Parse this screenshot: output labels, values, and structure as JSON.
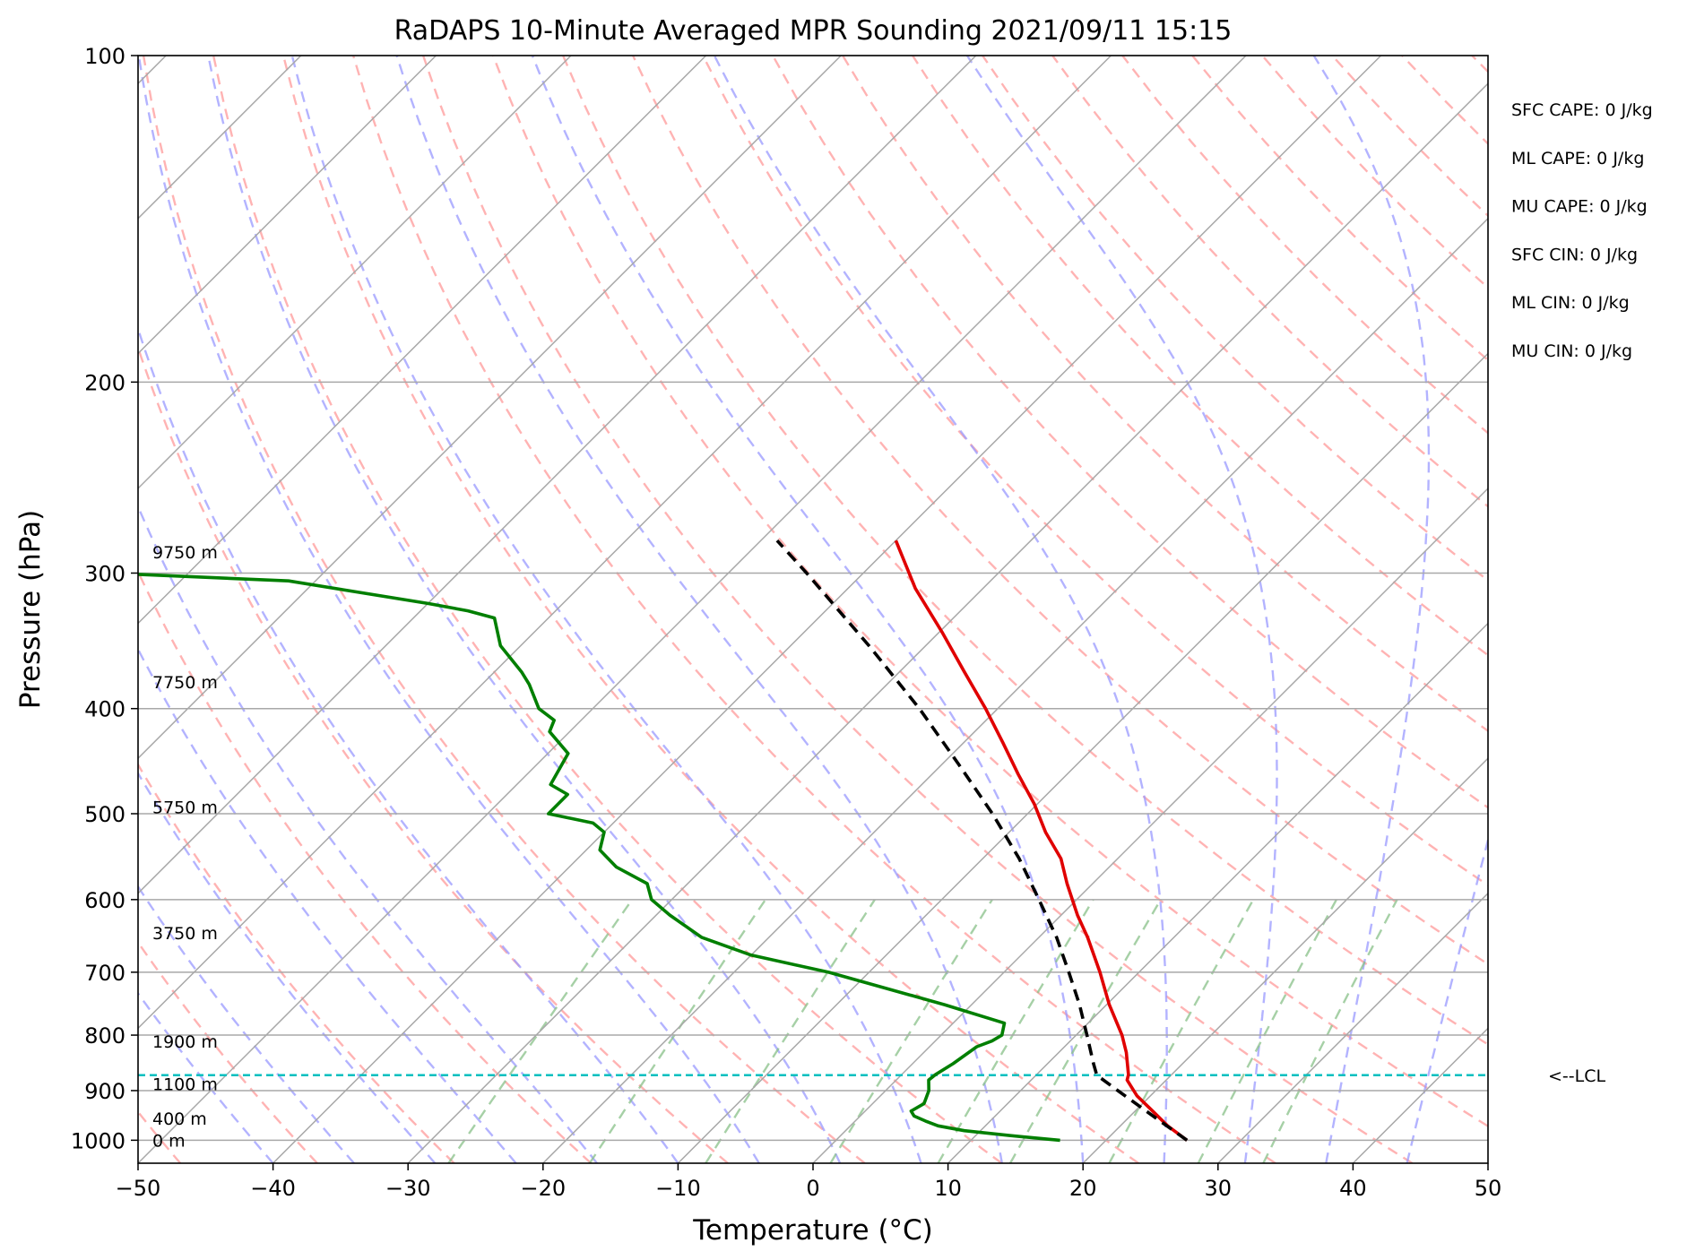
{
  "chart_data": {
    "type": "line",
    "title": "RaDAPS 10-Minute Averaged MPR Sounding 2021/09/11 15:15",
    "xlabel": "Temperature (°C)",
    "ylabel": "Pressure (hPa)",
    "xlim": [
      -50,
      50
    ],
    "ylim": [
      1050,
      100
    ],
    "yscale": "log",
    "skew_t": true,
    "grid": true,
    "x_ticks": [
      -50,
      -40,
      -30,
      -20,
      -10,
      0,
      10,
      20,
      30,
      40,
      50
    ],
    "x_tick_labels": [
      "−50",
      "−40",
      "−30",
      "−20",
      "−10",
      "0",
      "10",
      "20",
      "30",
      "40",
      "50"
    ],
    "y_ticks": [
      1000,
      900,
      800,
      700,
      600,
      500,
      400,
      300,
      200,
      100
    ],
    "y_tick_labels": [
      "1000",
      "900",
      "800",
      "700",
      "600",
      "500",
      "400",
      "300",
      "200",
      "100"
    ],
    "series": [
      {
        "role": "temperature",
        "color": "#e00000",
        "pressure": [
          1000,
          970,
          940,
          910,
          880,
          870,
          830,
          800,
          750,
          700,
          650,
          620,
          580,
          550,
          520,
          490,
          460,
          430,
          400,
          370,
          340,
          310,
          280
        ],
        "temperature": [
          26.0,
          23.5,
          21.3,
          19.0,
          17.1,
          16.8,
          15.0,
          13.4,
          10.2,
          7.1,
          3.6,
          1.2,
          -1.9,
          -4.2,
          -7.3,
          -10.2,
          -13.6,
          -17.1,
          -20.9,
          -25.2,
          -29.8,
          -35.0,
          -40.0
        ]
      },
      {
        "role": "dewpoint",
        "color": "#007f00",
        "pressure": [
          1000,
          990,
          980,
          970,
          960,
          950,
          940,
          925,
          900,
          880,
          870,
          850,
          820,
          810,
          800,
          780,
          750,
          700,
          675,
          650,
          620,
          600,
          580,
          560,
          540,
          520,
          510,
          500,
          480,
          470,
          440,
          420,
          410,
          400,
          380,
          370,
          350,
          330,
          325,
          320,
          305,
          300
        ],
        "dewpoint": [
          16.6,
          12.5,
          8.8,
          6.5,
          5.2,
          4.0,
          3.4,
          3.8,
          3.2,
          2.4,
          2.5,
          3.0,
          3.5,
          4.2,
          4.5,
          3.8,
          -2.0,
          -13.0,
          -20.0,
          -25.0,
          -29.0,
          -31.5,
          -33.0,
          -36.5,
          -39.0,
          -40.0,
          -41.5,
          -45.5,
          -45.5,
          -47.5,
          -48.5,
          -51.5,
          -52.0,
          -54.0,
          -56.5,
          -58.0,
          -61.5,
          -64.0,
          -66.5,
          -70.0,
          -82.0,
          -96.0
        ]
      },
      {
        "role": "parcel",
        "color": "#000000",
        "style": "dashed",
        "pressure": [
          1000,
          950,
          900,
          871,
          850,
          800,
          750,
          700,
          650,
          600,
          550,
          500,
          450,
          400,
          350,
          300,
          280
        ],
        "temperature": [
          26.0,
          21.7,
          17.2,
          14.5,
          13.4,
          10.8,
          8.0,
          4.8,
          1.3,
          -2.8,
          -7.3,
          -12.6,
          -18.8,
          -25.8,
          -34.2,
          -44.2,
          -48.8
        ]
      }
    ],
    "lcl": {
      "pressure": 871,
      "label": "<--LCL",
      "color": "#00bfbf"
    },
    "height_labels": [
      {
        "text": "0 m",
        "pressure": 1000
      },
      {
        "text": "400 m",
        "pressure": 955
      },
      {
        "text": "1100 m",
        "pressure": 887
      },
      {
        "text": "1900 m",
        "pressure": 811
      },
      {
        "text": "3750 m",
        "pressure": 644
      },
      {
        "text": "5750 m",
        "pressure": 493
      },
      {
        "text": "7750 m",
        "pressure": 378
      },
      {
        "text": "9750 m",
        "pressure": 287
      }
    ],
    "annotations": [
      "SFC CAPE: 0 J/kg",
      "ML CAPE: 0 J/kg",
      "MU CAPE: 0 J/kg",
      "SFC CIN: 0 J/kg",
      "ML CIN: 0 J/kg",
      "MU CIN: 0 J/kg"
    ],
    "reference_lines": {
      "isotherm_color": "#a8a8a8",
      "dry_adiabat_color": "#ff9999",
      "moist_adiabat_color": "#9999ff",
      "mixing_ratio_color": "#88c088"
    }
  }
}
